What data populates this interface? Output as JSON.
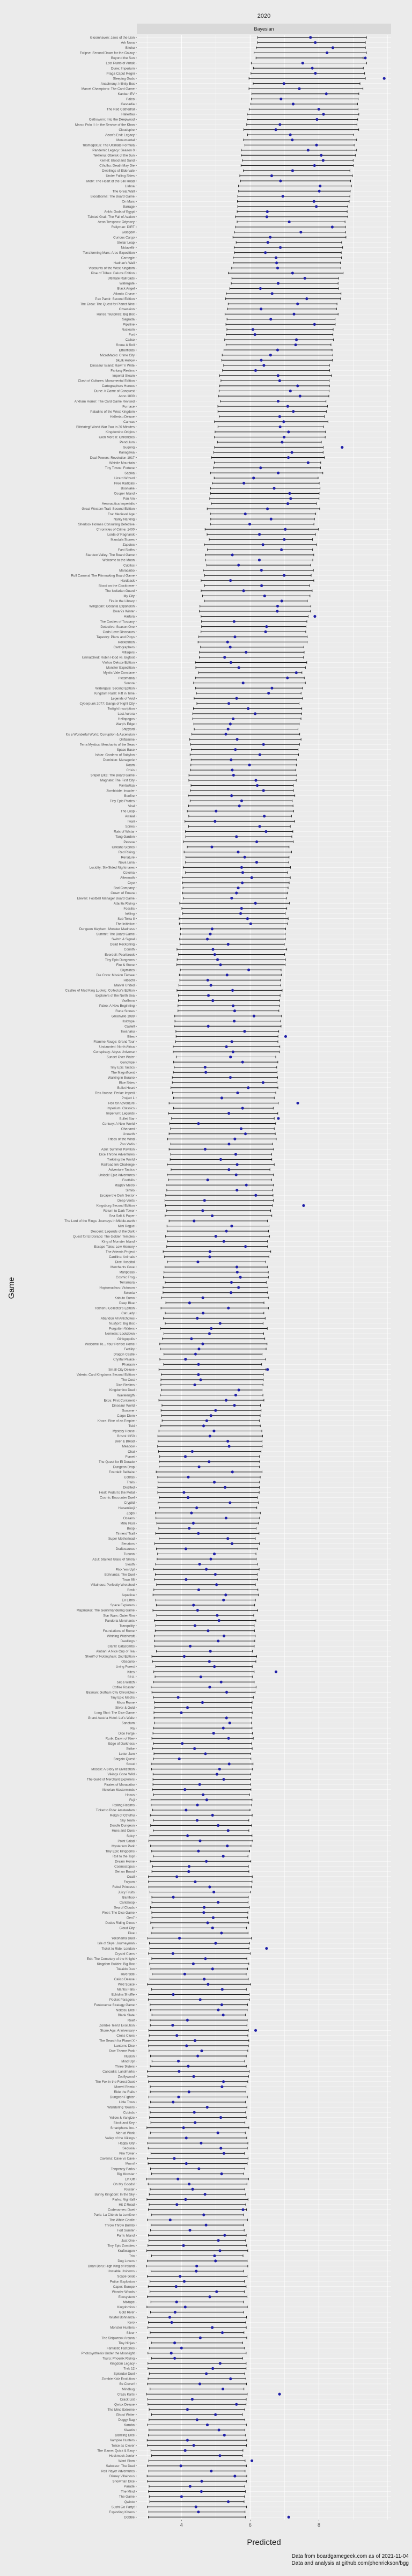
{
  "chart_data": {
    "type": "scatter",
    "title": "2020",
    "facet_label": "Bayesian",
    "xlabel": "Predicted",
    "ylabel": "Game",
    "x_ticks": [
      4,
      6,
      8
    ],
    "xlim": [
      2.7,
      10.1
    ],
    "caption_line1": "Data from boardgamegeek.com as of 2021-11-04",
    "caption_line2": "Data and analysis at github.com/phenrickson/bgg",
    "point_color": "#1f1fa8",
    "games": [
      "Gloomhaven: Jaws of the Lion",
      "Ark Nova",
      "Bitoku",
      "Eclipse: Second Dawn for the Galaxy",
      "Beyond the Sun",
      "Lost Ruins of Arnak",
      "Dune: Imperium",
      "Praga Caput Regni",
      "Sleeping Gods",
      "Anachrony: Infinity Box",
      "Marvel Champions: The Card Game",
      "Kanban EV",
      "Paleo",
      "Cascadia",
      "The Red Cathedral",
      "Hallertau",
      "Oathsworn: Into the Deepwood",
      "Marco Polo II: In the Service of the Khan",
      "Cloudspire",
      "Aeon's End: Legacy",
      "Monumental",
      "Trismegistus: The Ultimate Formula",
      "Pandemic Legacy: Season 0",
      "Tekhenu: Obelisk of the Sun",
      "Kemet: Blood and Sand",
      "Cthulhu: Death May Die",
      "Dwellings of Eldervale",
      "Under Falling Skies",
      "Merv: The Heart of the Silk Road",
      "Lisboa",
      "The Great Wall",
      "Bloodborne: The Board Game",
      "On Mars",
      "Barrage",
      "Ankh: Gods of Egypt",
      "Tainted Grail: The Fall of Avalon",
      "Aeon Trespass: Odyssey",
      "Rallyman: DIRT",
      "Glasgow",
      "Curious Cargo",
      "Stellar Leap",
      "Nidavellir",
      "Terraforming Mars: Ares Expedition",
      "Carnegie",
      "Hadrian's Wall",
      "Viscounts of the West Kingdom",
      "Rise of Tribes: Deluxe Edition",
      "Ultimate Railroads",
      "Watergate",
      "Black Angel",
      "Atlantic Chase",
      "Pax Pamir: Second Edition",
      "The Crew: The Quest for Planet Nine",
      "Obsession",
      "Hansa Teutonica: Big Box",
      "Sagrada",
      "Pipeline",
      "Nucleum",
      "Fort",
      "Calico",
      "Rome & Roll",
      "Etherfields",
      "MicroMacro: Crime City",
      "Skulk Hollow",
      "Dinosaur Island: Rawr 'n Write",
      "Fantasy Realms",
      "Imperial Steam",
      "Clash of Cultures: Monumental Edition",
      "Cartographers Heroes",
      "Dune: A Game of Conquest",
      "Anno 1800",
      "Arkham Horror: The Card Game Revised",
      "Furnace",
      "Paladins of the West Kingdom",
      "Hallertau Deluxe",
      "Canvas",
      "Blitzkrieg! World War Two in 20 Minutes",
      "Kingdomino Origins",
      "Glen More II: Chronicles",
      "Pendulum",
      "Gugong",
      "Kanagawa",
      "Dual Powers: Revolution 1917",
      "Whistle Mountain",
      "Tiny Towns: Fortune",
      "Sabika",
      "Lizard Wizard",
      "Free Radicals",
      "Boonlake",
      "Cooper Island",
      "Pan Am",
      "Aeronautica Imperialis",
      "Great Western Trail: Second Edition",
      "Era: Medieval Age",
      "Nanty Narking",
      "Sherlock Holmes Consulting Detective",
      "Chronicles of Crime: 1400",
      "Lords of Ragnarok",
      "Mandala Stones",
      "Zapotec",
      "Fast Sloths",
      "Stardew Valley: The Board Game",
      "Welcome to the Moon",
      "Cubitos",
      "Maracaibo",
      "Roll Camera! The Filmmaking Board Game",
      "Hardback",
      "Blood on the Clocktower",
      "The Isofarian Guard",
      "My City",
      "Fire in the Library",
      "Wingspan: Oceania Expansion",
      "Dwar7s Winter",
      "Hadara",
      "The Castles of Tuscany",
      "Detective: Season One",
      "Gods Love Dinosaurs",
      "Tapestry: Plans and Ploys",
      "Rocketmen",
      "Cartographers",
      "Villagers",
      "Unmatched: Robin Hood vs. Bigfoot",
      "Vinhos Deluxe Edition",
      "Monster Expedition",
      "Mystic Vale Conclave",
      "Pictomania",
      "Sonora",
      "Watergate: Second Edition",
      "Kingdom Rush: Rift in Time",
      "Legends of Void",
      "Cyberpunk 2077: Gangs of Night City",
      "Twilight Inscription",
      "Last Aurora",
      "Hellapagos",
      "Warp's Edge",
      "Shipyard",
      "It's a Wonderful World: Corruption & Ascension",
      "Oriflamme",
      "Terra Mystica: Merchants of the Seas",
      "Space Base",
      "Ishtar: Gardens of Babylon",
      "Dominion: Menagerie",
      "Roam",
      "Crisis",
      "Sniper Elite: The Board Game",
      "Magnate: The First City",
      "Fantastiqa",
      "Zombicide: Invader",
      "Bonfire",
      "Tiny Epic Pirates",
      "Viral",
      "The Loop",
      "Arraial",
      "Iwari",
      "Spires",
      "Rats of Wistar",
      "Tang Garden",
      "Pessoa",
      "Orleans Stories",
      "Red Rising",
      "Renature",
      "Nova Luna",
      "Lucidity: Six-Sided Nightmares",
      "Coloma",
      "Aftermath",
      "Cryo",
      "Bad Company",
      "Crown of Emara",
      "Eleven: Football Manager Board Game",
      "Atlantis Rising",
      "Fossilis",
      "Inkling",
      "Sub Terra II",
      "The Initiative",
      "Dungeon Mayhem: Monster Madness",
      "Summit: The Board Game",
      "Switch & Signal",
      "Dead Reckoning",
      "Corinth",
      "Everdell: Pearlbrook",
      "Tiny Epic Dungeons",
      "Fire & Stone",
      "Skymines",
      "Die Crew: Mission Tiefsee",
      "Hibachi",
      "Marvel United",
      "Castles of Mad King Ludwig: Collector's Edition",
      "Explorers of the North Sea",
      "Vaalbara",
      "Paleo: A New Beginning",
      "Rune Stones",
      "Greenville 1989",
      "Holotype",
      "Castell",
      "Tiwanaku",
      "Bites",
      "Flamme Rouge: Grand Tour",
      "Undaunted: North Africa",
      "Conspiracy: Abyss Universe",
      "Sunset Over Water",
      "Genotype",
      "Tiny Epic Tactics",
      "The Magnificent",
      "Walking in Burano",
      "Blue Skies",
      "Bullet Heart",
      "Res Arcana: Perlae Imperii",
      "Project L",
      "Roll for Adventure",
      "Imperium: Classics",
      "Imperium: Legends",
      "Bullet Star",
      "Century: A New World",
      "Ohanami",
      "Unearth",
      "Tribes of the Wind",
      "Zoo Vadis",
      "Azul: Summer Pavilion",
      "Dice Throne Adventures",
      "Trekking the World",
      "Railroad Ink Challenge",
      "Adventure Tactics",
      "Unlock! Epic Adventures",
      "Foothills",
      "Maglev Metro",
      "Similo",
      "Escape the Dark Sector",
      "Deep Vents",
      "Kingsburg Second Edition",
      "Return to Dark Tower",
      "Sea Salt & Paper",
      "The Lord of the Rings: Journeys in Middle-earth",
      "Mini Rogue",
      "Descent: Legends of the Dark",
      "Quest for El Dorado: The Golden Temples",
      "King of Monster Island",
      "Escape Tales: Low Memory",
      "The Artemis Project",
      "Cardline: Animals",
      "Dice Hospital",
      "Merchants Cove",
      "Mariposas",
      "Cosmic Frog",
      "Terramara",
      "Hoplomachus: Victorum",
      "Solenia",
      "Kabuto Sumo",
      "Deep Blue",
      "Tekhenu Collector's Edition",
      "Cat Lady",
      "Abandon All Artichokes",
      "Nusfjord: Big Box",
      "Forgotten Waters",
      "Nemesis: Lockdown",
      "Ginkgopolis",
      "Welcome To... Your Perfect Home",
      "Fertility",
      "Dragon Castle",
      "Crystal Palace",
      "Pharaon",
      "Small City Deluxe",
      "Valeria: Card Kingdoms Second Edition",
      "The Cost",
      "Dice Realms",
      "Kingdomino Duel",
      "Wavelength",
      "Ecos: First Continent",
      "Dinosaur World",
      "Sorcerer",
      "Carpe Diem",
      "Khora: Rise of an Empire",
      "Tuki",
      "Mystery House",
      "Bristol 1350",
      "Beer & Bread",
      "Meadow",
      "Chai",
      "Planet",
      "The Quest for El Dorado",
      "Dungeon Drop",
      "Everdell: Bellfaire",
      "Cobras",
      "Trails",
      "Distilled",
      "Heat: Pedal to the Metal",
      "Cosmic Encounter Duel",
      "Cryptid",
      "Hanamikoji",
      "Zogis",
      "Oceans",
      "Mille Fiori",
      "Boop",
      "Tinners' Trail",
      "Super Motherload",
      "Senators",
      "Draftosaurus",
      "Tucana",
      "Azul: Stained Glass of Sintra",
      "Sleuth",
      "Flick 'em Up!",
      "Bohnanza: The Duel",
      "Town 66",
      "Villainous: Perfectly Wretched",
      "Bosk",
      "Aquatica",
      "Ex Libris",
      "Space Explorers",
      "Mapmaker: The Gerrymandering Game",
      "Star Wars: Outer Rim",
      "Pandoria Merchants",
      "Tranquility",
      "Foundations of Rome",
      "Whirling Witchcraft",
      "Dwellings",
      "Clank! Catacombs",
      "Alubari: A Nice Cup of Tea",
      "Sheriff of Nottingham: 2nd Edition",
      "Obscurio",
      "Living Forest",
      "Kites",
      "5211",
      "Set a Watch",
      "Coffee Roaster",
      "Batman: Gotham City Chronicles",
      "Tiny Epic Mechs",
      "Micro Rome",
      "Silver & Gold",
      "Long Shot: The Dice Game",
      "Grand Austria Hotel: Let's Waltz",
      "Sanctum",
      "Ra",
      "Dice Forge",
      "Rurik: Dawn of Kiev",
      "Edge of Darkness",
      "Strike",
      "Letter Jam",
      "Bargain Quest",
      "Scout",
      "Mosaic: A Story of Civilization",
      "Vikings Gone Wild",
      "The Guild of Merchant Explorers",
      "Pirates of Maracaibo",
      "Victorian Masterminds",
      "Hocus",
      "Fuji",
      "Rolling Realms",
      "Ticket to Ride: Amsterdam",
      "Reign of Cthulhu",
      "Sky Team",
      "Doodle Dungeon",
      "Hues and Cues",
      "Spicy",
      "Point Salad",
      "Mysterium Park",
      "Tiny Epic Kingdoms",
      "Roll to the Top!",
      "Dream Home",
      "Cosmoctopus",
      "Get on Board",
      "Coatl",
      "Faiyum",
      "Rebel Princess",
      "Juicy Fruits",
      "Bamboo",
      "Cantaloop",
      "Sea of Clouds",
      "Fleet: The Dice Game",
      "Gen7",
      "Dodos Riding Dinos",
      "Cloud City",
      "Dive",
      "Yokohama Duel",
      "Isle of Skye: Journeyman",
      "Ticket to Ride: London",
      "Crystal Clans",
      "Exit: The Cemetery of the Knight",
      "Kingdom Builder: Big Box",
      "Tokaido Duo",
      "Riverside",
      "Calico Deluxe",
      "Wild Space",
      "Mantis Falls",
      "Echidna Shuffle",
      "Pocket Paragons",
      "Funkoverse Strategy Game",
      "Nokosu Dice",
      "Blank Slate",
      "Reef",
      "Zombie Teenz Evolution",
      "Stone Age: Anniversary",
      "Cross Clues",
      "The Search for Planet X",
      "Lanterns Dice",
      "Dice Theme Park",
      "Illusion",
      "Mind Up!",
      "Three Sisters",
      "Cascadia: Landmarks",
      "Zoollywood",
      "The Fox in the Forest Duet",
      "Marvel Remix",
      "Ride the Rails",
      "Dungeon Fighter",
      "Little Town",
      "Wandering Towers",
      "Cubirds",
      "Yellow & Yangtze",
      "Block and Key",
      "Smartphone Inc.",
      "Men at Work",
      "Valley of the Vikings",
      "Happy City",
      "Sequoia",
      "Fire Tower",
      "Caverna: Cave vs Cave",
      "Mmm!",
      "Tenpenny Parks",
      "Big Monster",
      "Lift Off",
      "Oh My Goods!",
      "Kluster",
      "Bunny Kingdom: In the Sky",
      "Parks: Nightfall",
      "Hit Z Road",
      "Codenames: Duet",
      "Paris: La Cité de la Lumière",
      "The White Castle",
      "Throw Throw Burrito",
      "Fort Sumter",
      "Pan's Island",
      "Just One",
      "Tiny Epic Zombies",
      "Kraftwagen",
      "Trio",
      "Dog Lovers",
      "Brian Boru: High King of Ireland",
      "Unstable Unicorns",
      "Scape Goat",
      "Potion Explosion",
      "Caper: Europe",
      "Wonder Woods",
      "Ecosystem",
      "Mixtape",
      "Kingdomino",
      "Gold River",
      "Wurfel Bohnanza",
      "Kero",
      "Monster Hunters",
      "Silver",
      "The Shipwreck Arcana",
      "Tiny Ninjas",
      "Fantastic Factories",
      "Photosynthesis Under the Moonlight",
      "Tsuro: Phoenix Rising",
      "Kingdom Legacy",
      "Trek 12",
      "Splendor Duel",
      "Zombie Kidz Evolution",
      "So Clover!",
      "Mindbug",
      "Crazy Karts",
      "Crack List",
      "Qwixx Deluxe",
      "The Mind Extreme",
      "Ghost Writer",
      "Doggy Bag",
      "Karuba",
      "Kiwetin",
      "Dancing Dice",
      "Vampire Hunters",
      "Twice as Clever",
      "The Game: Quick & Easy",
      "Heckmeck Junior",
      "Word Slam",
      "Saboteur: The Duel",
      "Roll Player Adventures",
      "Disney Villainous",
      "Snowman Dice",
      "Parade",
      "The Mind",
      "The Game",
      "Qwinto",
      "Sushi Go Party!",
      "Exploding Kittens",
      "Dobble"
    ]
  }
}
